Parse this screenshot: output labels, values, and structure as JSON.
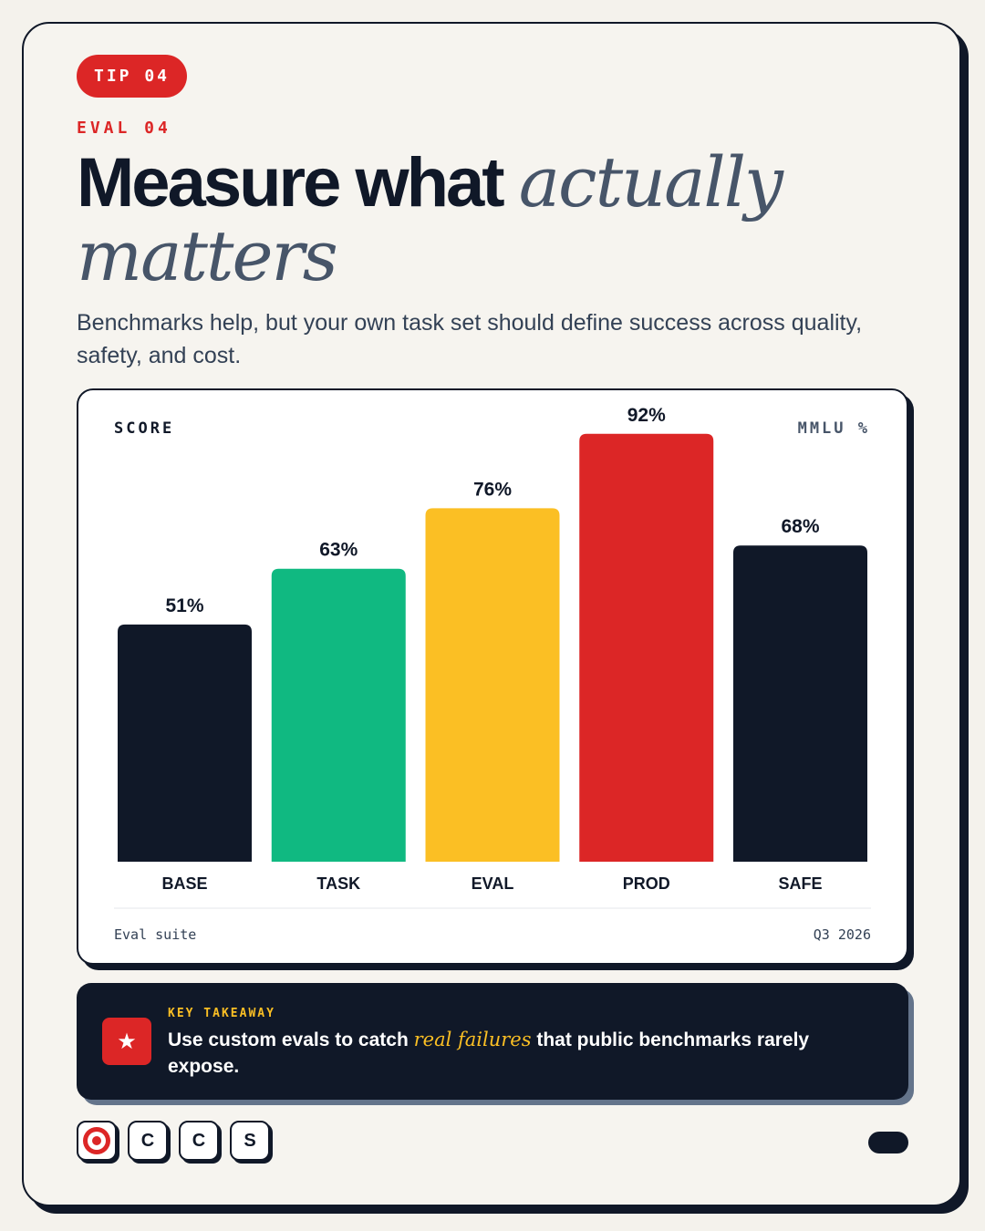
{
  "tip": {
    "label": "TIP 04"
  },
  "kicker": "EVAL 04",
  "title": {
    "main": "Measure what",
    "italic_1": "actually",
    "italic_2": "matters"
  },
  "subtitle": "Benchmarks help, but your own task set should define success across quality, safety, and cost.",
  "chart_header": {
    "left": "SCORE",
    "right": "MMLU %"
  },
  "chart_data": {
    "type": "bar",
    "categories": [
      "BASE",
      "TASK",
      "EVAL",
      "PROD",
      "SAFE"
    ],
    "values": [
      51,
      63,
      76,
      92,
      68
    ],
    "value_labels": [
      "51%",
      "63%",
      "76%",
      "92%",
      "68%"
    ],
    "colors": [
      "#101828",
      "#10b981",
      "#fbbf24",
      "#dc2626",
      "#101828"
    ],
    "ylim": [
      0,
      100
    ],
    "grid": false
  },
  "chart_footer": {
    "left": "Eval suite",
    "right": "Q3 2026"
  },
  "takeaway": {
    "label": "KEY TAKEAWAY",
    "text_before": "Use custom evals to catch",
    "highlight": "real failures",
    "text_after": "that public benchmarks rarely expose.",
    "icon": "star-icon"
  },
  "chips": {
    "items": [
      "C",
      "C",
      "S"
    ],
    "first_icon": "target-icon"
  },
  "colors": {
    "accent": "#dc2626",
    "ink": "#101828",
    "highlight": "#fbbf24",
    "green": "#10b981"
  }
}
